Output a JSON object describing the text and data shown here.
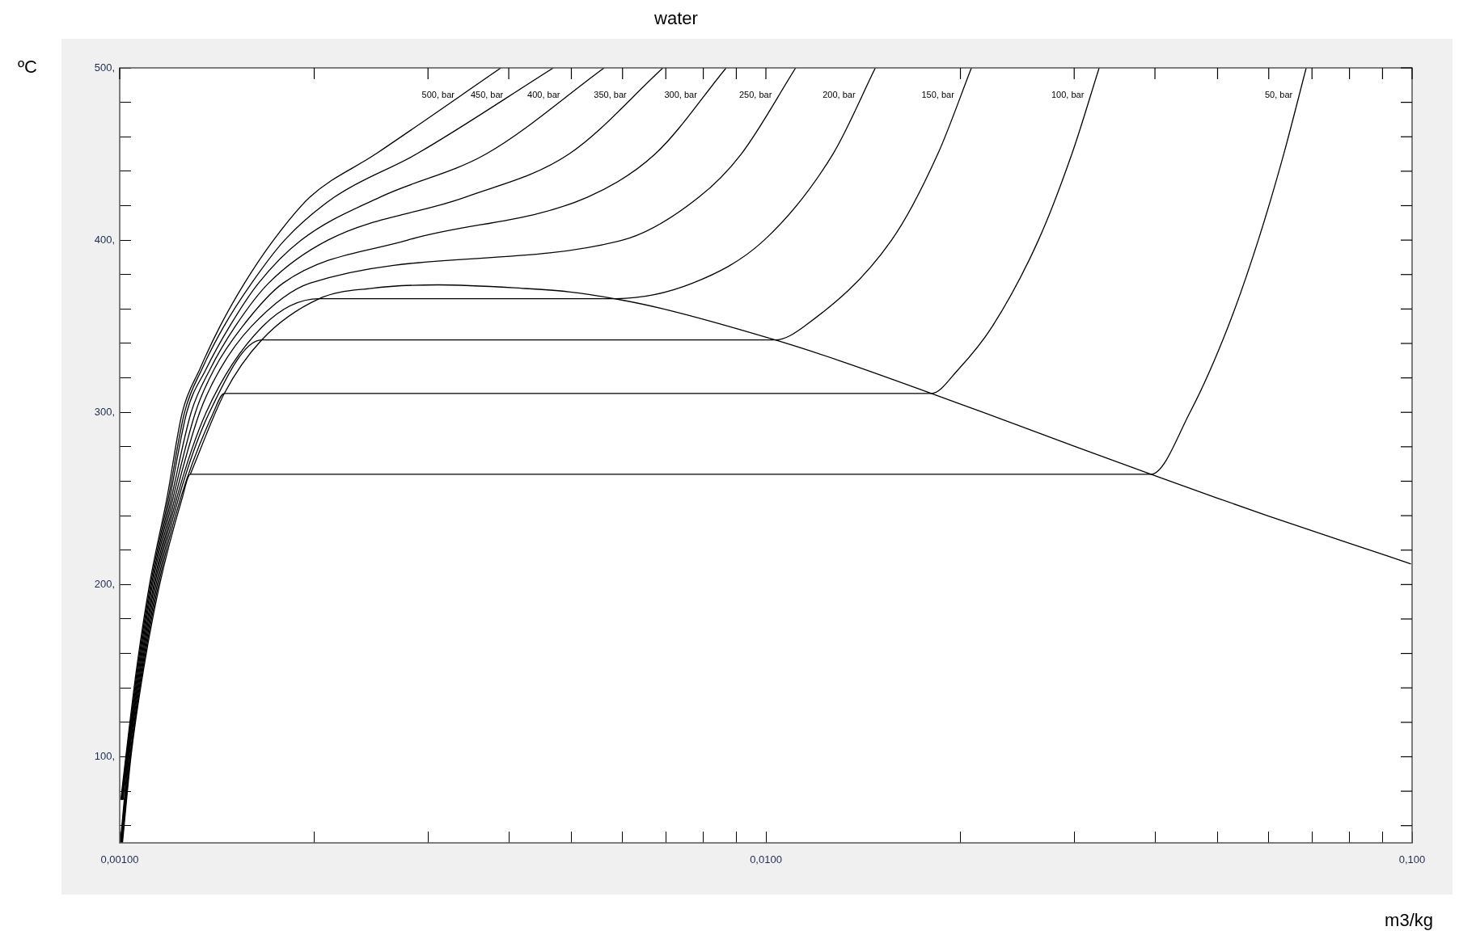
{
  "chart_data": {
    "type": "line",
    "title": "water",
    "xlabel": "m3/kg",
    "ylabel": "ºC",
    "log": "x",
    "grid": false,
    "legend": "top",
    "marker": "none",
    "line_style": "solid",
    "xlim": [
      0.001,
      0.1
    ],
    "xticks": [
      {
        "value": 0.001,
        "label": "0,00100"
      },
      {
        "value": 0.002,
        "label": null
      },
      {
        "value": 0.003,
        "label": null
      },
      {
        "value": 0.004,
        "label": null
      },
      {
        "value": 0.005,
        "label": null
      },
      {
        "value": 0.006,
        "label": null
      },
      {
        "value": 0.007,
        "label": null
      },
      {
        "value": 0.008,
        "label": null
      },
      {
        "value": 0.009,
        "label": null
      },
      {
        "value": 0.01,
        "label": "0,0100"
      },
      {
        "value": 0.02,
        "label": null
      },
      {
        "value": 0.03,
        "label": null
      },
      {
        "value": 0.04,
        "label": null
      },
      {
        "value": 0.05,
        "label": null
      },
      {
        "value": 0.06,
        "label": null
      },
      {
        "value": 0.07,
        "label": null
      },
      {
        "value": 0.08,
        "label": null
      },
      {
        "value": 0.09,
        "label": null
      },
      {
        "value": 0.1,
        "label": "0,100"
      }
    ],
    "ylim": [
      50,
      500
    ],
    "yticks": [
      {
        "value": 60,
        "label": null
      },
      {
        "value": 80,
        "label": null
      },
      {
        "value": 100,
        "label": "100,"
      },
      {
        "value": 120,
        "label": null
      },
      {
        "value": 140,
        "label": null
      },
      {
        "value": 160,
        "label": null
      },
      {
        "value": 180,
        "label": null
      },
      {
        "value": 200,
        "label": "200,"
      },
      {
        "value": 220,
        "label": null
      },
      {
        "value": 240,
        "label": null
      },
      {
        "value": 260,
        "label": null
      },
      {
        "value": 280,
        "label": null
      },
      {
        "value": 300,
        "label": "300,"
      },
      {
        "value": 320,
        "label": null
      },
      {
        "value": 340,
        "label": null
      },
      {
        "value": 360,
        "label": null
      },
      {
        "value": 380,
        "label": null
      },
      {
        "value": 400,
        "label": "400,"
      },
      {
        "value": 420,
        "label": null
      },
      {
        "value": 440,
        "label": null
      },
      {
        "value": 460,
        "label": null
      },
      {
        "value": 480,
        "label": null
      },
      {
        "value": 500,
        "label": "500,"
      }
    ],
    "series": [
      {
        "name": "50, bar",
        "color": "#000000",
        "x": [
          0.00101,
          0.001041,
          0.001088,
          0.001153,
          0.001249,
          0.001286,
          0.03944,
          0.04532,
          0.05194,
          0.05781,
          0.0633,
          0.06857
        ],
        "values": [
          50,
          100,
          150,
          200,
          250,
          264,
          264,
          300,
          350,
          400,
          450,
          500
        ]
      },
      {
        "name": "100, bar",
        "color": "#000000",
        "x": [
          0.001008,
          0.001039,
          0.001085,
          0.001148,
          0.001242,
          0.001397,
          0.001452,
          0.01803,
          0.01986,
          0.02242,
          0.02641,
          0.02975,
          0.03279
        ],
        "values": [
          50,
          100,
          150,
          200,
          250,
          300,
          311,
          311,
          325,
          350,
          400,
          450,
          500
        ]
      },
      {
        "name": "150, bar",
        "color": "#000000",
        "x": [
          0.001006,
          0.001037,
          0.001082,
          0.001143,
          0.001233,
          0.001377,
          0.001658,
          0.01034,
          0.01147,
          0.01565,
          0.01845,
          0.0208
        ],
        "values": [
          50,
          100,
          150,
          200,
          250,
          300,
          342,
          342,
          350,
          400,
          450,
          500
        ]
      },
      {
        "name": "200, bar",
        "color": "#000000",
        "x": [
          0.001004,
          0.001034,
          0.001079,
          0.001138,
          0.001225,
          0.001361,
          0.001665,
          0.002036,
          0.00583,
          0.0077,
          0.00994,
          0.0127,
          0.01477
        ],
        "values": [
          50,
          100,
          150,
          200,
          250,
          300,
          350,
          366,
          366,
          375,
          400,
          450,
          500
        ]
      },
      {
        "name": "250, bar",
        "color": "#000000",
        "x": [
          0.001002,
          0.001032,
          0.001076,
          0.001133,
          0.001217,
          0.00133,
          0.00143,
          0.0016,
          0.00197,
          0.006,
          0.00788,
          0.00916,
          0.01112
        ],
        "values": [
          50,
          100,
          150,
          200,
          250,
          300,
          325,
          350,
          375,
          400,
          425,
          450,
          500
        ]
      },
      {
        "name": "300, bar",
        "color": "#000000",
        "x": [
          0.001012,
          0.00103,
          0.001073,
          0.001129,
          0.001209,
          0.00131,
          0.0014,
          0.00155,
          0.00179,
          0.00279,
          0.0053,
          0.00674,
          0.00868
        ],
        "values": [
          75,
          100,
          150,
          200,
          250,
          300,
          325,
          350,
          375,
          400,
          425,
          450,
          500
        ]
      },
      {
        "name": "350, bar",
        "color": "#000000",
        "x": [
          0.00101,
          0.001028,
          0.00107,
          0.001124,
          0.001202,
          0.00129,
          0.00138,
          0.00151,
          0.0017,
          0.0021,
          0.00343,
          0.00496,
          0.00693
        ],
        "values": [
          75,
          100,
          150,
          200,
          250,
          300,
          325,
          350,
          375,
          400,
          425,
          450,
          500
        ]
      },
      {
        "name": "400, bar",
        "color": "#000000",
        "x": [
          0.001008,
          0.001026,
          0.001067,
          0.00112,
          0.001195,
          0.00127,
          0.00136,
          0.00148,
          0.00164,
          0.00191,
          0.00253,
          0.00369,
          0.00562
        ],
        "values": [
          75,
          100,
          150,
          200,
          250,
          300,
          325,
          350,
          375,
          400,
          425,
          450,
          500
        ]
      },
      {
        "name": "450, bar",
        "color": "#000000",
        "x": [
          0.001006,
          0.001024,
          0.001064,
          0.001116,
          0.001189,
          0.00126,
          0.00134,
          0.00145,
          0.0016,
          0.0018,
          0.00215,
          0.00288,
          0.00469
        ],
        "values": [
          75,
          100,
          150,
          200,
          250,
          300,
          325,
          350,
          375,
          400,
          425,
          450,
          500
        ]
      },
      {
        "name": "500, bar",
        "color": "#000000",
        "x": [
          0.001004,
          0.001022,
          0.001061,
          0.001112,
          0.001183,
          0.00125,
          0.00133,
          0.00143,
          0.00156,
          0.00173,
          0.00197,
          0.00249,
          0.00389
        ],
        "values": [
          75,
          100,
          150,
          200,
          250,
          300,
          325,
          350,
          375,
          400,
          425,
          450,
          500
        ]
      },
      {
        "color": "#000000",
        "x": [
          0.001286,
          0.001452,
          0.001658,
          0.002036,
          0.00245,
          0.00311,
          0.0042,
          0.00495,
          0.00583,
          0.00695,
          0.01034,
          0.013,
          0.01803,
          0.02167,
          0.03017,
          0.03944,
          0.05013,
          0.0597,
          0.07849,
          0.0996
        ],
        "values": [
          264,
          311,
          342,
          366,
          372,
          374,
          372,
          370,
          366,
          360,
          342,
          330,
          311,
          300,
          280,
          264,
          250,
          240,
          225,
          212
        ]
      }
    ]
  }
}
